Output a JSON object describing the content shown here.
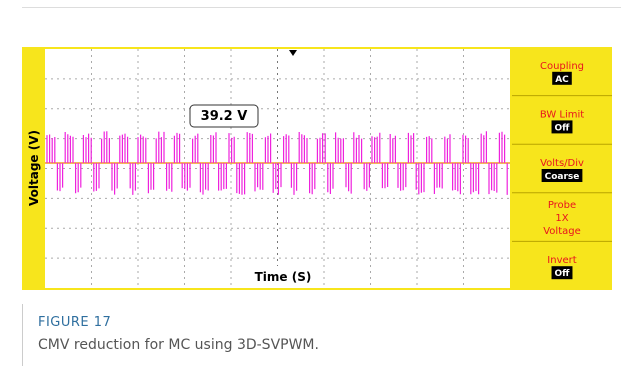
{
  "figure": {
    "screen": {
      "y_label": "Voltage (V)",
      "x_label": "Time (S)",
      "annotation": "39.2 V",
      "menu": [
        {
          "lines": [
            "Coupling"
          ],
          "value": "AC"
        },
        {
          "lines": [
            "BW Limit"
          ],
          "value": "Off"
        },
        {
          "lines": [
            "Volts/Div"
          ],
          "value": "Coarse"
        },
        {
          "lines": [
            "Probe",
            "1X",
            "Voltage"
          ]
        },
        {
          "lines": [
            "Invert"
          ],
          "value": "Off"
        }
      ]
    },
    "label": "FIGURE 17",
    "caption": "CMV reduction for MC using 3D-SVPWM."
  }
}
